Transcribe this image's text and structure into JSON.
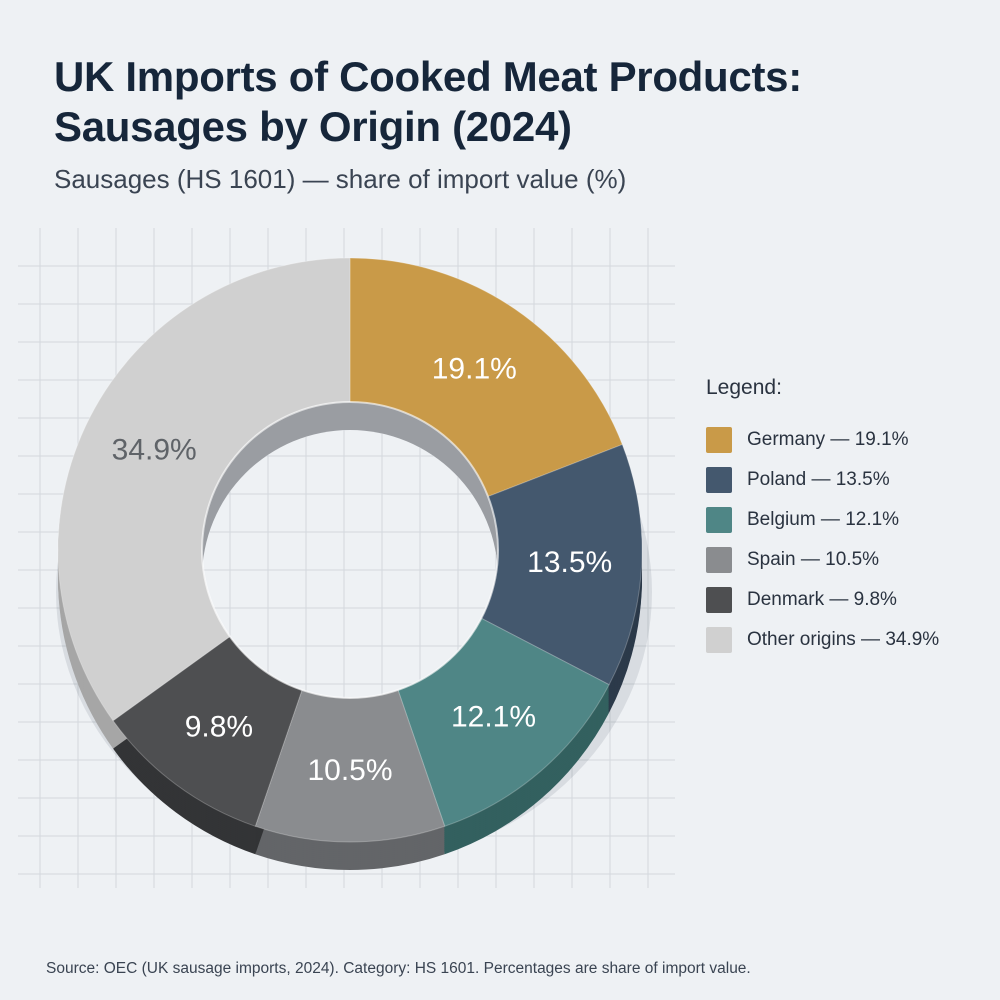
{
  "header": {
    "title_line1": "UK Imports of Cooked Meat Products:",
    "title_line2": "Sausages by Origin (2024)",
    "subtitle": "Sausages (HS 1601) — share of import value (%)"
  },
  "legend": {
    "title": "Legend:",
    "items": [
      {
        "label": "Germany — 19.1%",
        "color": "#c99a48"
      },
      {
        "label": "Poland — 13.5%",
        "color": "#44586e"
      },
      {
        "label": "Belgium — 12.1%",
        "color": "#4f8686"
      },
      {
        "label": "Spain — 10.5%",
        "color": "#8a8c8f"
      },
      {
        "label": "Denmark — 9.8%",
        "color": "#4e4f51"
      },
      {
        "label": "Other origins — 34.9%",
        "color": "#d0d0d0"
      }
    ]
  },
  "footer": {
    "source": "Source: OEC (UK sausage imports, 2024). Category: HS 1601. Percentages are share of import value."
  },
  "chart_data": {
    "type": "pie",
    "variant": "donut",
    "title": "UK Imports of Cooked Meat Products: Sausages by Origin (2024)",
    "subtitle": "Sausages (HS 1601) — share of import value (%)",
    "unit": "%",
    "legend_position": "right",
    "grid": true,
    "slices": [
      {
        "name": "Germany",
        "value": 19.1,
        "label": "19.1%",
        "color": "#c99a48",
        "side": "#8f6a2a",
        "text": "#ffffff"
      },
      {
        "name": "Poland",
        "value": 13.5,
        "label": "13.5%",
        "color": "#44586e",
        "side": "#2c3a4a",
        "text": "#ffffff"
      },
      {
        "name": "Belgium",
        "value": 12.1,
        "label": "12.1%",
        "color": "#4f8686",
        "side": "#33605f",
        "text": "#ffffff"
      },
      {
        "name": "Spain",
        "value": 10.5,
        "label": "10.5%",
        "color": "#8a8c8f",
        "side": "#636568",
        "text": "#ffffff"
      },
      {
        "name": "Denmark",
        "value": 9.8,
        "label": "9.8%",
        "color": "#4e4f51",
        "side": "#333436",
        "text": "#ffffff"
      },
      {
        "name": "Other origins",
        "value": 34.9,
        "label": "34.9%",
        "color": "#d0d0d0",
        "side": "#a6a6a6",
        "text": "#5f6368"
      }
    ]
  }
}
